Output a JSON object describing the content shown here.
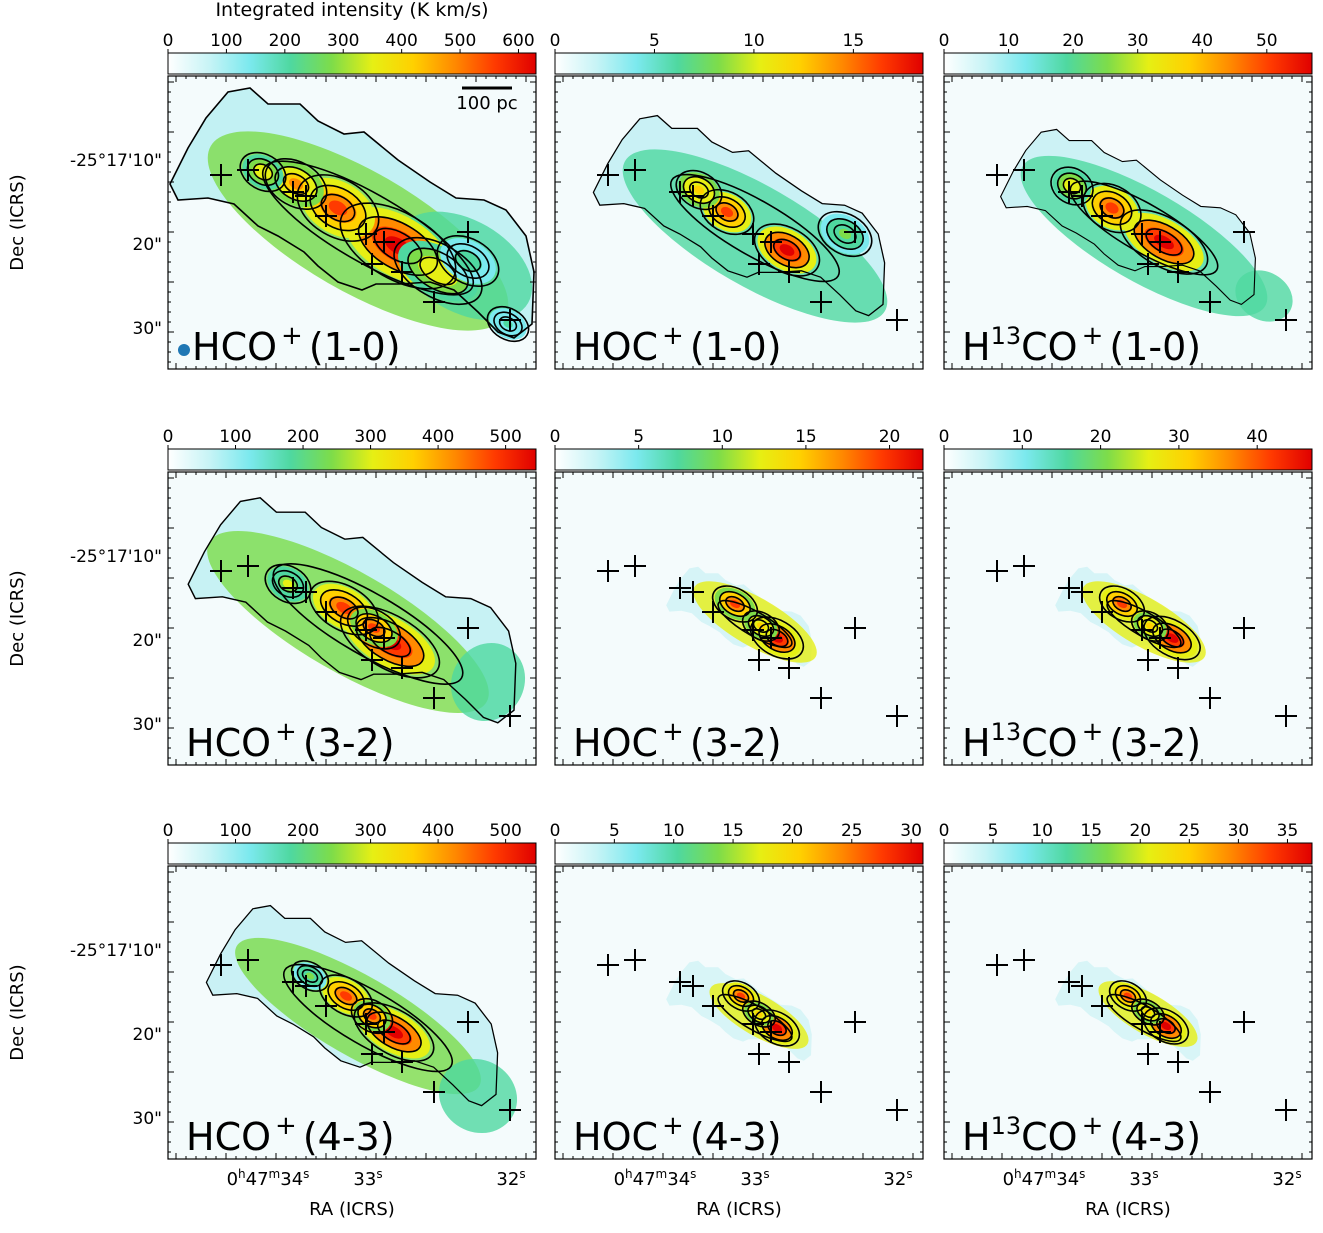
{
  "figure": {
    "colorbar_title": "Integrated intensity (K km/s)",
    "scale_bar_label": "100 pc",
    "ylabel": "Dec (ICRS)",
    "xlabel": "RA (ICRS)",
    "y_tick_labels": [
      "-25°17'10\"",
      "20\"",
      "30\""
    ],
    "x_tick_labels": [
      {
        "main": "0",
        "h": "h",
        "mid": "47",
        "m": "m",
        "sec": "34",
        "s": "s"
      },
      {
        "main": "33",
        "s": "s"
      },
      {
        "main": "32",
        "s": "s"
      }
    ],
    "colormap": [
      "#ffffff",
      "#c8f4f6",
      "#7be9ee",
      "#4fd8a0",
      "#7ddc4a",
      "#e6ef14",
      "#ffd000",
      "#ff8a00",
      "#ff3a00",
      "#e00000"
    ]
  },
  "chart_data": [
    {
      "type": "heatmap",
      "panel": 1,
      "molecule": "HCO",
      "charge": "+",
      "transition": "(1-0)",
      "colorbar_ticks": [
        0,
        100,
        200,
        300,
        400,
        500,
        600
      ],
      "colorbar_range": [
        0,
        630
      ],
      "show_title": true,
      "show_scale_bar": true,
      "show_beam": true
    },
    {
      "type": "heatmap",
      "panel": 2,
      "molecule": "HOC",
      "charge": "+",
      "transition": "(1-0)",
      "colorbar_ticks": [
        0,
        5,
        10,
        15
      ],
      "colorbar_range": [
        0,
        18.5
      ]
    },
    {
      "type": "heatmap",
      "panel": 3,
      "molecule": "H",
      "iso": "13",
      "molecule_rest": "CO",
      "charge": "+",
      "transition": "(1-0)",
      "colorbar_ticks": [
        0,
        10,
        20,
        30,
        40,
        50
      ],
      "colorbar_range": [
        0,
        57
      ]
    },
    {
      "type": "heatmap",
      "panel": 4,
      "molecule": "HCO",
      "charge": "+",
      "transition": "(3-2)",
      "colorbar_ticks": [
        0,
        100,
        200,
        300,
        400,
        500
      ],
      "colorbar_range": [
        0,
        545
      ]
    },
    {
      "type": "heatmap",
      "panel": 5,
      "molecule": "HOC",
      "charge": "+",
      "transition": "(3-2)",
      "colorbar_ticks": [
        0,
        5,
        10,
        15,
        20
      ],
      "colorbar_range": [
        0,
        22
      ]
    },
    {
      "type": "heatmap",
      "panel": 6,
      "molecule": "H",
      "iso": "13",
      "molecule_rest": "CO",
      "charge": "+",
      "transition": "(3-2)",
      "colorbar_ticks": [
        0,
        10,
        20,
        30,
        40
      ],
      "colorbar_range": [
        0,
        47
      ]
    },
    {
      "type": "heatmap",
      "panel": 7,
      "molecule": "HCO",
      "charge": "+",
      "transition": "(4-3)",
      "colorbar_ticks": [
        0,
        100,
        200,
        300,
        400,
        500
      ],
      "colorbar_range": [
        0,
        545
      ]
    },
    {
      "type": "heatmap",
      "panel": 8,
      "molecule": "HOC",
      "charge": "+",
      "transition": "(4-3)",
      "colorbar_ticks": [
        0,
        5,
        10,
        15,
        20,
        25,
        30
      ],
      "colorbar_range": [
        0,
        31
      ]
    },
    {
      "type": "heatmap",
      "panel": 9,
      "molecule": "H",
      "iso": "13",
      "molecule_rest": "CO",
      "charge": "+",
      "transition": "(4-3)",
      "colorbar_ticks": [
        0,
        5,
        10,
        15,
        20,
        25,
        30,
        35
      ],
      "colorbar_range": [
        0,
        37.5
      ]
    }
  ]
}
